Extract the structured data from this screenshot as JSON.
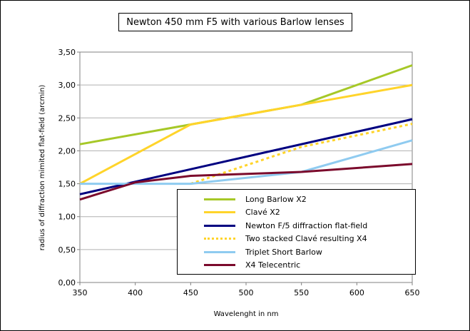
{
  "chart_data": {
    "type": "line",
    "title": "Newton 450 mm F5 with various Barlow lenses",
    "xlabel": "Wavelenght in nm",
    "ylabel": "radius of diffraction mimited flat-field (arcmin)",
    "xlim": [
      350,
      650
    ],
    "ylim": [
      0,
      3.5
    ],
    "x_ticks": [
      "350",
      "400",
      "450",
      "500",
      "550",
      "600",
      "650"
    ],
    "y_ticks": [
      "0,00",
      "0,50",
      "1,00",
      "1,50",
      "2,00",
      "2,50",
      "3,00",
      "3,50"
    ],
    "grid": "horizontal",
    "legend_position": "bottom-right",
    "series": [
      {
        "name": "Long Barlow X2",
        "color": "#a6c827",
        "style": "solid",
        "points": [
          [
            350,
            2.1
          ],
          [
            450,
            2.4
          ],
          [
            550,
            2.7
          ],
          [
            650,
            3.3
          ]
        ]
      },
      {
        "name": "Clavé X2",
        "color": "#ffd42a",
        "style": "solid",
        "points": [
          [
            350,
            1.5
          ],
          [
            450,
            2.4
          ],
          [
            550,
            2.7
          ],
          [
            650,
            3.0
          ]
        ]
      },
      {
        "name": "Newton F/5 diffraction flat-field",
        "color": "#000080",
        "style": "solid",
        "points": [
          [
            350,
            1.34
          ],
          [
            650,
            2.48
          ]
        ]
      },
      {
        "name": "Two stacked Clavé resulting X4",
        "color": "#ffd42a",
        "style": "dotted",
        "points": [
          [
            450,
            1.5
          ],
          [
            550,
            2.06
          ],
          [
            650,
            2.41
          ]
        ]
      },
      {
        "name": "Triplet Short Barlow",
        "color": "#8fcbf0",
        "style": "solid",
        "points": [
          [
            350,
            1.5
          ],
          [
            450,
            1.5
          ],
          [
            550,
            1.68
          ],
          [
            650,
            2.16
          ]
        ]
      },
      {
        "name": "X4 Telecentric",
        "color": "#7b0a2c",
        "style": "solid",
        "points": [
          [
            350,
            1.26
          ],
          [
            400,
            1.52
          ],
          [
            450,
            1.62
          ],
          [
            550,
            1.68
          ],
          [
            650,
            1.8
          ]
        ]
      }
    ]
  }
}
